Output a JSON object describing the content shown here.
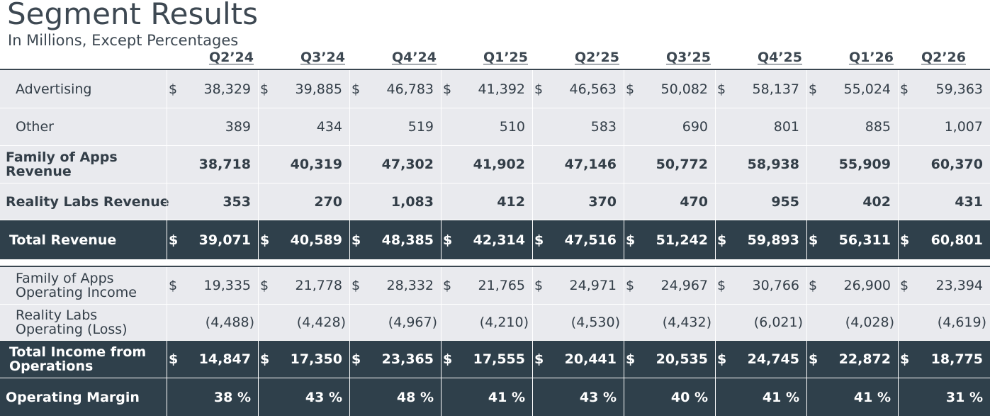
{
  "title": "Segment Results",
  "subtitle": "In Millions, Except Percentages",
  "periods": [
    "Q2'24",
    "Q3'24",
    "Q4'24",
    "Q1'25",
    "Q2'25",
    "Q3'25",
    "Q4'25",
    "Q1'26",
    "Q2'26"
  ],
  "rows": [
    {
      "label": "Advertising",
      "style": "light",
      "indent": true,
      "bold": false,
      "currency": true,
      "values": [
        "38,329",
        "39,885",
        "46,783",
        "41,392",
        "46,563",
        "50,082",
        "58,137",
        "55,024",
        "59,363"
      ]
    },
    {
      "label": "Other",
      "style": "light",
      "indent": true,
      "bold": false,
      "currency": false,
      "values": [
        "389",
        "434",
        "519",
        "510",
        "583",
        "690",
        "801",
        "885",
        "1,007"
      ]
    },
    {
      "label": "Family of Apps\nRevenue",
      "style": "light",
      "indent": false,
      "bold": true,
      "currency": false,
      "values": [
        "38,718",
        "40,319",
        "47,302",
        "41,902",
        "47,146",
        "50,772",
        "58,938",
        "55,909",
        "60,370"
      ]
    },
    {
      "label": "Reality Labs Revenue",
      "style": "light",
      "indent": false,
      "bold": true,
      "currency": false,
      "values": [
        "353",
        "270",
        "1,083",
        "412",
        "370",
        "470",
        "955",
        "402",
        "431"
      ]
    },
    {
      "label": "Total Revenue",
      "style": "dark",
      "indent": false,
      "bold": true,
      "currency": true,
      "values": [
        "39,071",
        "40,589",
        "48,385",
        "42,314",
        "47,516",
        "51,242",
        "59,893",
        "56,311",
        "60,801"
      ]
    },
    {
      "label": "Family of Apps\nOperating Income",
      "style": "light",
      "indent": true,
      "bold": false,
      "currency": true,
      "values": [
        "19,335",
        "21,778",
        "28,332",
        "21,765",
        "24,971",
        "24,967",
        "30,766",
        "26,900",
        "23,394"
      ]
    },
    {
      "label": "Reality Labs\nOperating (Loss)",
      "style": "light",
      "indent": true,
      "bold": false,
      "currency": false,
      "values": [
        "(4,488)",
        "(4,428)",
        "(4,967)",
        "(4,210)",
        "(4,530)",
        "(4,432)",
        "(6,021)",
        "(4,028)",
        "(4,619)"
      ]
    },
    {
      "label": "Total Income from\nOperations",
      "style": "dark",
      "indent": false,
      "bold": true,
      "currency": true,
      "values": [
        "14,847",
        "17,350",
        "23,365",
        "17,555",
        "20,441",
        "20,535",
        "24,745",
        "22,872",
        "18,775"
      ]
    },
    {
      "label": "Operating Margin",
      "style": "dark",
      "indent": false,
      "bold": true,
      "currency": false,
      "values": [
        "38 %",
        "43 %",
        "48 %",
        "41 %",
        "43 %",
        "40 %",
        "41 %",
        "41 %",
        "31 %"
      ]
    }
  ],
  "currency_symbol": "$",
  "colors": {
    "dark_row": "#2f404b",
    "light_row": "#e9eaee",
    "text": "#333e48"
  }
}
